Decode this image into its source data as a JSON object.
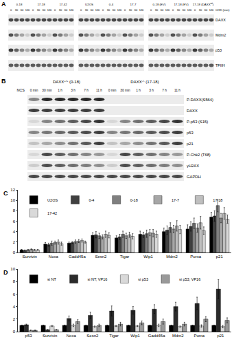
{
  "panels": {
    "A": {
      "label": "A",
      "header": "CHX (min)",
      "timepoints": [
        0,
        30,
        60,
        120
      ],
      "blocks": [
        [
          "0-18",
          "17-18",
          "17-42"
        ],
        [
          "U2OS",
          "0-4",
          "17-7"
        ],
        [
          "0-18 (EV)",
          "17-18 (EV)",
          {
            "text": "17-18 (DAXX",
            "sup": "wt",
            "tail": ")"
          }
        ]
      ],
      "rows": [
        "DAXX",
        "Mdm2",
        "p53",
        "TFIIH"
      ]
    },
    "B": {
      "label": "B",
      "treatment": "NCS",
      "groups": [
        {
          "text": "DAXX",
          "sup": "+/+",
          "tail": " (0-18)"
        },
        {
          "text": "DAXX",
          "sup": "-/-",
          "tail": " (17-18)"
        }
      ],
      "timepoints": [
        "0 min",
        "30 min",
        "1 h",
        "3 h",
        "7 h",
        "11 h"
      ],
      "rows": [
        "P-DAXX(S564)",
        "DAXX",
        "P-p53 (S15)",
        "p53",
        "p21",
        "P-Chk2 (T68)",
        "γH2AX",
        "GAPDH"
      ]
    }
  },
  "chart_data": [
    {
      "label": "C",
      "type": "bar",
      "legend": "top-left",
      "grid": false,
      "categories": [
        "Survivin",
        "Noxa",
        "Gadd45a",
        "Sesn2",
        "Tigar",
        "Wip1",
        "Mdm2",
        "Puma",
        "p21"
      ],
      "ylim": [
        0,
        12
      ],
      "yticks": [
        0,
        2,
        4,
        6,
        8,
        10,
        12
      ],
      "series": [
        {
          "name": "U2OS",
          "color": "#000000",
          "values": [
            0.5,
            1.6,
            1.8,
            3.3,
            2.8,
            3.5,
            4.0,
            4.5,
            6.8
          ],
          "errors": [
            0.1,
            0.3,
            0.2,
            0.5,
            0.4,
            0.6,
            0.7,
            0.8,
            0.9
          ]
        },
        {
          "name": "0-4",
          "color": "#404040",
          "values": [
            0.4,
            1.5,
            1.9,
            3.4,
            3.0,
            3.4,
            4.3,
            5.0,
            7.0
          ],
          "errors": [
            0.1,
            0.3,
            0.2,
            0.6,
            0.5,
            0.5,
            0.8,
            0.9,
            1.0
          ]
        },
        {
          "name": "0-18",
          "color": "#7f7f7f",
          "values": [
            0.5,
            1.8,
            2.1,
            3.2,
            3.5,
            3.6,
            4.8,
            5.6,
            9.0
          ],
          "errors": [
            0.1,
            0.4,
            0.3,
            0.5,
            0.6,
            0.7,
            0.9,
            1.0,
            1.2
          ]
        },
        {
          "name": "17-7",
          "color": "#a6a6a6",
          "values": [
            0.6,
            1.9,
            2.2,
            3.0,
            3.2,
            3.8,
            4.5,
            4.7,
            6.6
          ],
          "errors": [
            0.1,
            0.3,
            0.3,
            0.4,
            0.5,
            0.6,
            0.7,
            0.8,
            0.9
          ]
        },
        {
          "name": "17-18",
          "color": "#bfbfbf",
          "values": [
            0.5,
            2.0,
            2.3,
            3.5,
            3.4,
            3.7,
            5.1,
            5.7,
            7.5
          ],
          "errors": [
            0.1,
            0.4,
            0.3,
            0.6,
            0.5,
            0.7,
            1.0,
            1.2,
            1.1
          ]
        },
        {
          "name": "17-42",
          "color": "#d9d9d9",
          "values": [
            0.5,
            1.7,
            2.0,
            3.3,
            3.1,
            3.5,
            4.4,
            4.2,
            6.4
          ],
          "errors": [
            0.1,
            0.3,
            0.2,
            0.5,
            0.5,
            0.6,
            0.8,
            0.7,
            0.8
          ]
        }
      ]
    },
    {
      "label": "D",
      "type": "bar",
      "legend": "top-left",
      "grid": false,
      "categories": [
        "p53",
        "Survivin",
        "Noxa",
        "Sesn2",
        "Tigar",
        "Wip1",
        "Gadd45a",
        "Mdm2",
        "Puma",
        "p21"
      ],
      "ylim": [
        0,
        10
      ],
      "yticks": [
        0,
        2,
        4,
        6,
        8,
        10
      ],
      "series": [
        {
          "name": "si NT",
          "color": "#000000",
          "values": [
            1,
            1,
            1,
            1,
            1,
            1,
            1,
            1,
            1,
            1
          ],
          "errors": [
            0.05,
            0.05,
            0.05,
            0.05,
            0.05,
            0.05,
            0.05,
            0.05,
            0.05,
            0.05
          ]
        },
        {
          "name": "si NT; VP16",
          "color": "#2b2b2b",
          "values": [
            1.1,
            0.3,
            2.1,
            2.6,
            3.3,
            3.4,
            3.6,
            4.0,
            4.5,
            6.8
          ],
          "errors": [
            0.1,
            0.05,
            0.4,
            0.5,
            0.8,
            0.6,
            0.7,
            0.7,
            1.0,
            1.5
          ]
        },
        {
          "name": "si p53",
          "color": "#d9d9d9",
          "values": [
            0.2,
            0.9,
            1.0,
            0.8,
            0.9,
            0.9,
            1.0,
            0.8,
            0.9,
            0.8
          ],
          "errors": [
            0.05,
            0.1,
            0.2,
            0.1,
            0.1,
            0.1,
            0.2,
            0.1,
            0.2,
            0.2
          ]
        },
        {
          "name": "si p53; VP16",
          "color": "#999999",
          "values": [
            0.2,
            0.3,
            1.6,
            1.0,
            1.2,
            1.4,
            1.6,
            1.2,
            2.0,
            1.8
          ],
          "errors": [
            0.05,
            0.05,
            0.3,
            0.2,
            0.3,
            0.3,
            0.4,
            0.3,
            0.4,
            0.4
          ]
        }
      ]
    }
  ]
}
